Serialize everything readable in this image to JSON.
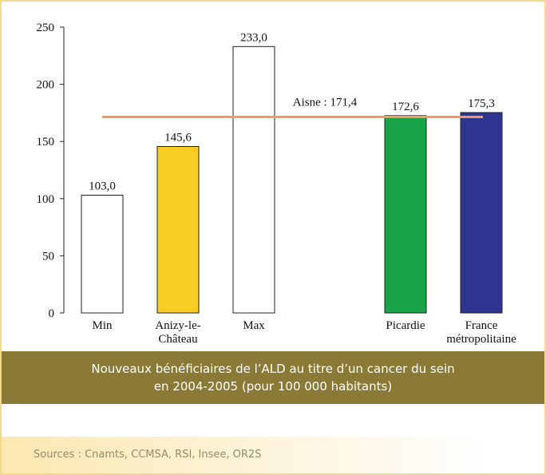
{
  "chart_data": {
    "type": "bar",
    "categories": [
      "Min",
      "Anizy-le-Château",
      "Max",
      null,
      "Picardie",
      "France métropolitaine"
    ],
    "values": [
      103.0,
      145.6,
      233.0,
      null,
      172.6,
      175.3
    ],
    "value_labels": [
      "103,0",
      "145,6",
      "233,0",
      null,
      "172,6",
      "175,3"
    ],
    "colors": [
      "#ffffff",
      "#f9cc24",
      "#ffffff",
      null,
      "#1aa44a",
      "#2e3591"
    ],
    "ylim": [
      0,
      250
    ],
    "yticks": [
      0,
      50,
      100,
      150,
      200,
      250
    ],
    "reference": {
      "value": 171.4,
      "label": "Aisne : 171,4",
      "color": "#f39a5c"
    },
    "title_lines": [
      "Nouveaux bénéficiaires de l’ALD au titre d’un cancer du sein",
      "en 2004-2005 (pour 100 000 habitants)"
    ],
    "source": "Sources : Cnamts, CCMSA, RSI, Insee, OR2S"
  }
}
